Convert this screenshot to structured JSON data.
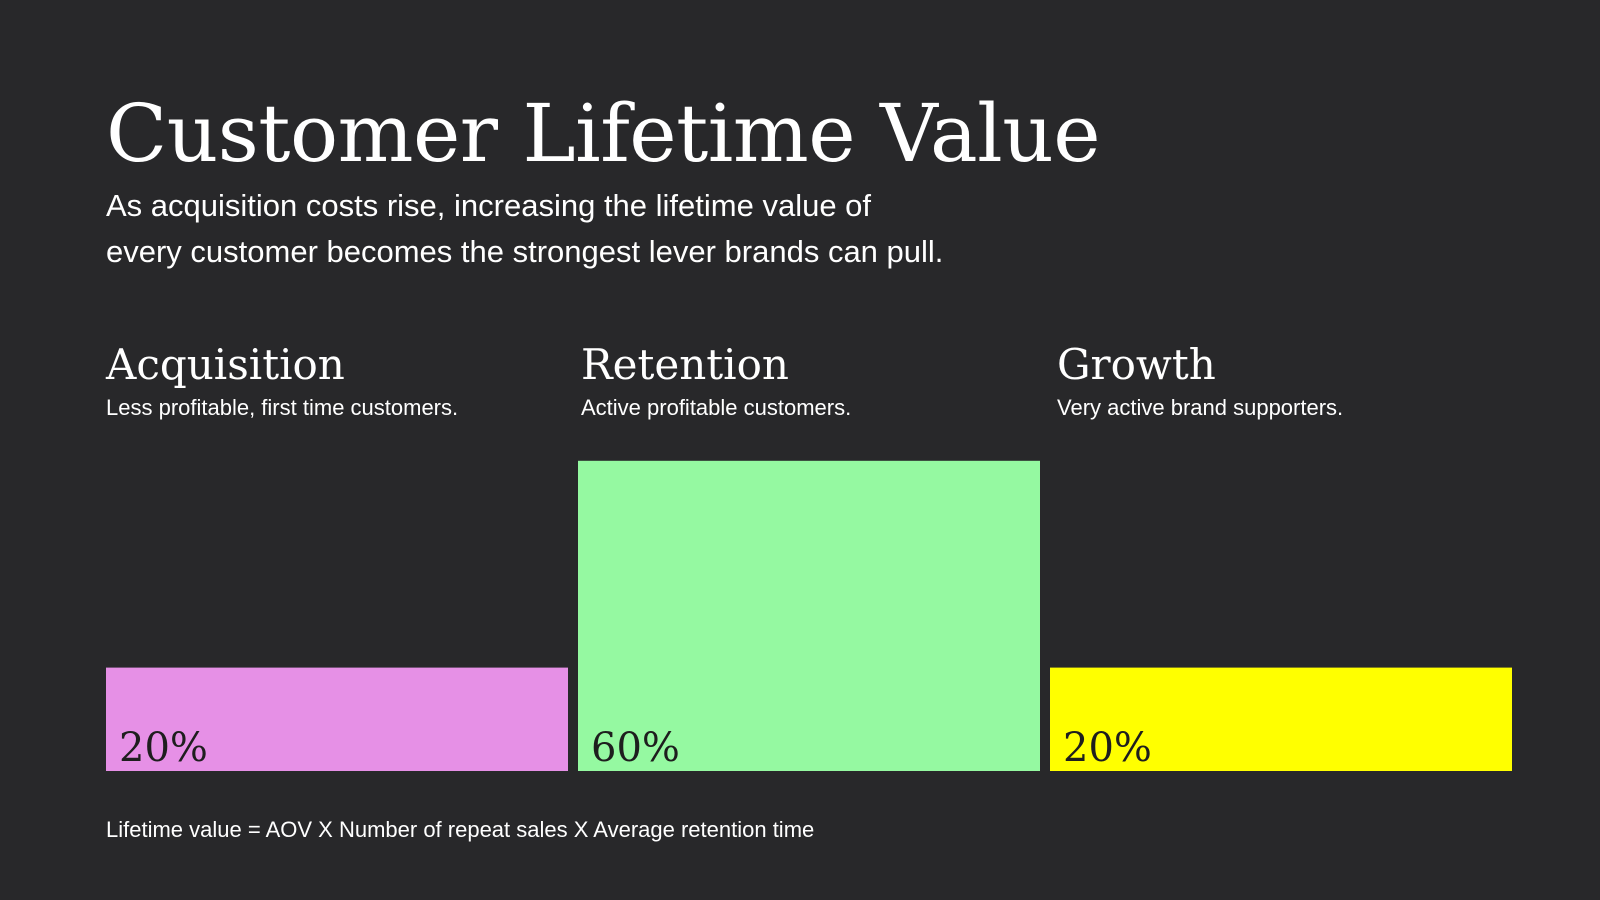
{
  "page": {
    "title": "Customer Lifetime Value",
    "subtitle_line1": "As acquisition costs rise, increasing the lifetime value of",
    "subtitle_line2": "every customer becomes the strongest lever brands can pull.",
    "footer": "Lifetime value = AOV X Number of repeat sales X Average retention time"
  },
  "colors": {
    "background": "#28282a",
    "text": "#ffffff",
    "value_label": "#1e1e1e"
  },
  "chart_data": {
    "type": "bar",
    "categories": [
      "Acquisition",
      "Retention",
      "Growth"
    ],
    "descriptions": [
      "Less profitable, first time customers.",
      "Active profitable customers.",
      "Very active brand supporters."
    ],
    "values": [
      20,
      60,
      20
    ],
    "value_labels": [
      "20%",
      "60%",
      "20%"
    ],
    "colors": [
      "#e690e6",
      "#95f9a1",
      "#ffff00"
    ],
    "unit": "%",
    "title": "",
    "xlabel": "",
    "ylabel": "",
    "legend": "none",
    "grid": false
  }
}
